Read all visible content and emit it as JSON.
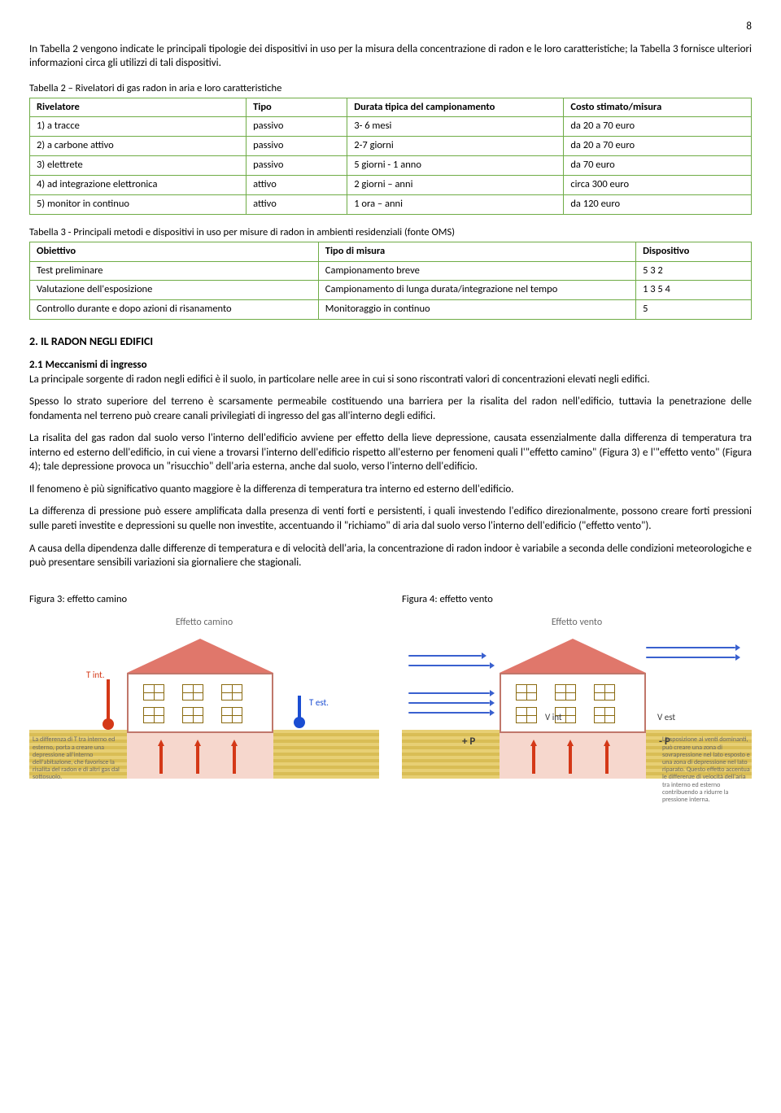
{
  "page_number": "8",
  "intro_para": "In Tabella 2 vengono indicate le principali tipologie dei dispositivi in uso per la misura della concentrazione di radon e le loro caratteristiche;  la Tabella 3 fornisce ulteriori informazioni circa gli utilizzi di tali dispositivi.",
  "table2": {
    "caption": "Tabella 2 – Rivelatori di gas radon in aria e loro caratteristiche",
    "columns": [
      "Rivelatore",
      "Tipo",
      "Durata tipica del campionamento",
      "Costo stimato/misura"
    ],
    "rows": [
      [
        "1) a tracce",
        "passivo",
        "3- 6 mesi",
        "da 20 a 70 euro"
      ],
      [
        "2) a carbone attivo",
        "passivo",
        "2-7 giorni",
        "da 20 a 70 euro"
      ],
      [
        "3) elettrete",
        "passivo",
        "5 giorni - 1 anno",
        "da 70 euro"
      ],
      [
        "4) ad integrazione elettronica",
        "attivo",
        "2 giorni – anni",
        "circa 300 euro"
      ],
      [
        "5) monitor in continuo",
        "attivo",
        "1 ora – anni",
        "da 120 euro"
      ]
    ],
    "border_color": "#6fac46"
  },
  "table3": {
    "caption": "Tabella 3 - Principali metodi e dispositivi in uso per misure di radon in ambienti residenziali (fonte OMS)",
    "columns": [
      "Obiettivo",
      "Tipo di misura",
      "Dispositivo"
    ],
    "rows": [
      [
        "Test preliminare",
        "Campionamento breve",
        "5  3  2"
      ],
      [
        "Valutazione dell'esposizione",
        "Campionamento di lunga durata/integrazione nel tempo",
        "1  3  5  4"
      ],
      [
        "Controllo durante e dopo azioni di risanamento",
        "Monitoraggio in continuo",
        "5"
      ]
    ],
    "border_color": "#6fac46"
  },
  "section2": {
    "heading": "2. IL RADON NEGLI EDIFICI",
    "sub_heading": "2.1 Meccanismi di ingresso",
    "paragraphs": [
      "La principale sorgente di radon negli edifici è il suolo, in particolare nelle aree in cui si sono riscontrati valori di concentrazioni elevati negli edifici.",
      "Spesso lo strato superiore del terreno è scarsamente permeabile costituendo una barriera per la risalita del radon nell'edificio, tuttavia la penetrazione delle fondamenta nel terreno può creare canali privilegiati di ingresso del gas all'interno degli edifici.",
      "La risalita del gas radon dal suolo verso l'interno dell'edificio avviene per effetto della lieve depressione, causata essenzialmente dalla differenza di temperatura tra interno ed esterno dell'edificio, in cui viene a trovarsi l'interno dell'edificio rispetto all'esterno per fenomeni quali l'\"effetto camino\" (Figura 3) e l'\"effetto vento\" (Figura 4); tale depressione provoca un \"risucchio\" dell'aria esterna, anche dal suolo, verso l'interno dell'edificio.",
      "Il fenomeno è più significativo quanto maggiore è la differenza di temperatura tra interno ed esterno dell'edificio.",
      "La differenza di pressione può essere amplificata dalla presenza di venti forti e persistenti, i quali investendo l'edifico direzionalmente, possono creare forti pressioni sulle pareti investite e depressioni su quelle non investite, accentuando il \"richiamo\" di aria dal suolo verso l'interno dell'edificio (\"effetto vento\").",
      "A causa della dipendenza dalle differenze di temperatura e di velocità dell'aria, la concentrazione di radon indoor è variabile a seconda delle condizioni meteorologiche e può presentare sensibili variazioni sia giornaliere che stagionali."
    ]
  },
  "figures": {
    "fig3": {
      "caption": "Figura 3: effetto camino",
      "title_in_image": "Effetto camino",
      "label_tint": "T int.",
      "label_test": "T est.",
      "side_text": "La differenza di T tra interno ed esterno, porta a creare una depressione all'interno dell'abitazione, che favorisce la risalita del radon e di altri gas dal sottosuolo.",
      "colors": {
        "ground": "#e7cf74",
        "basement": "#f6d7cd",
        "roof": "#e0776b",
        "wall_border": "#c0776b",
        "hot": "#d43817",
        "cold": "#1a4dd2"
      }
    },
    "fig4": {
      "caption": "Figura 4: effetto vento",
      "title_in_image": "Effetto vento",
      "label_vint": "V int",
      "label_vest": "V est",
      "label_plusP": "+ P",
      "label_minusP": "- P",
      "side_text": "L'esposizione ai venti dominanti, può creare una zona di sovrapressione nel lato esposto e una zona di depressione nel lato riparato. Questo effetto accentua le differenze di velocità dell'aria tra interno ed esterno contribuendo a ridurre la pressione interna.",
      "colors": {
        "wind": "#3960cf"
      }
    }
  }
}
